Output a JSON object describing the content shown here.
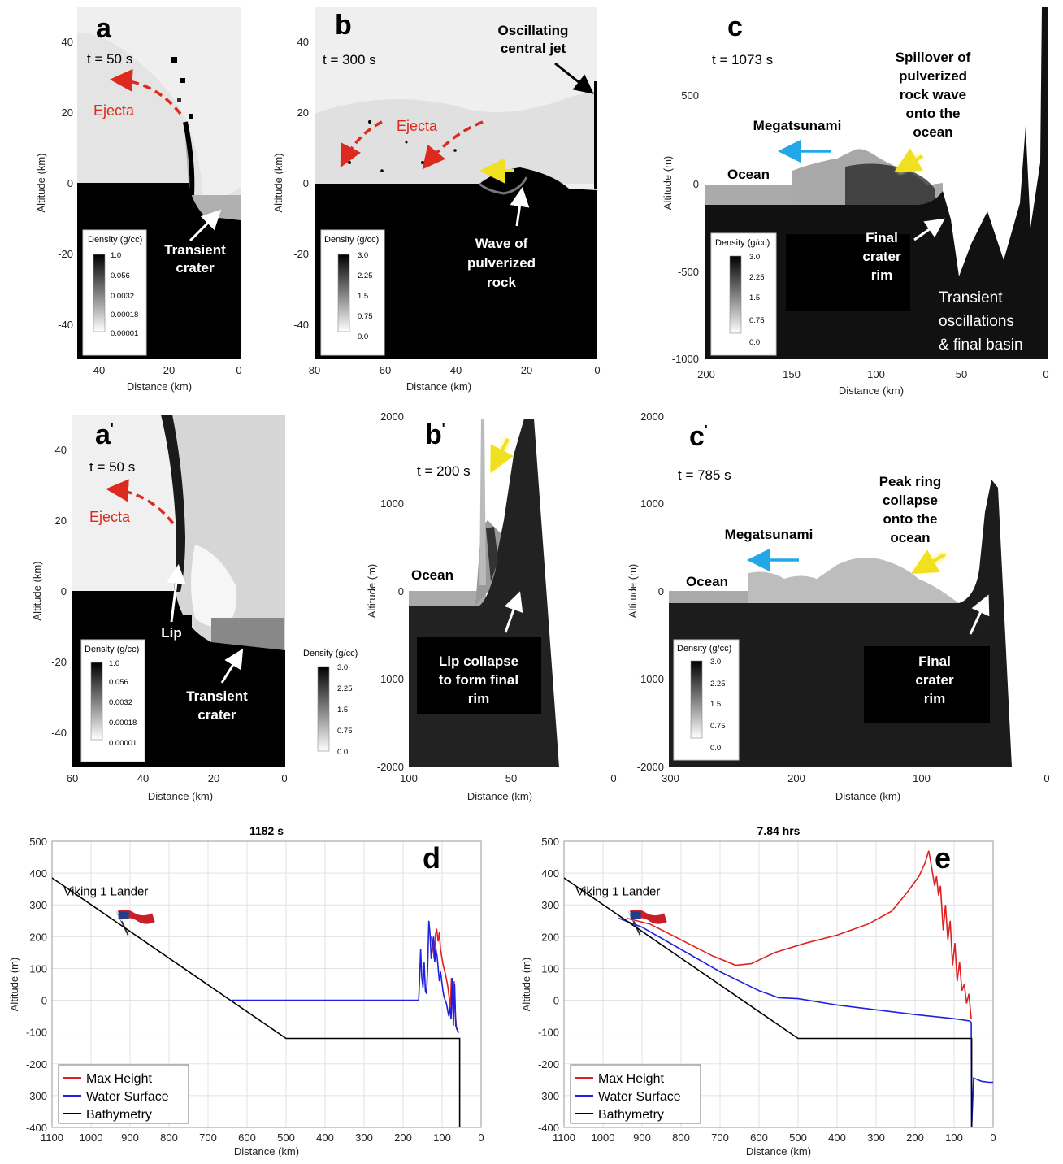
{
  "panels": {
    "a": {
      "letter": "a",
      "time": "t = 50 s",
      "ejecta": "Ejecta",
      "crater": [
        "Transient",
        "crater"
      ],
      "ylabel": "Altitude (km)",
      "xlabel": "Distance (km)",
      "yticks": [
        "40",
        "20",
        "0",
        "-20",
        "-40"
      ],
      "xticks": [
        "40",
        "20",
        "0"
      ],
      "cbar_title": "Density (g/cc)",
      "cbar_ticks": [
        "1.0",
        "0.056",
        "0.0032",
        "0.00018",
        "0.00001"
      ]
    },
    "b": {
      "letter": "b",
      "time": "t = 300 s",
      "ejecta": "Ejecta",
      "jet": [
        "Oscillating",
        "central jet"
      ],
      "wave": [
        "Wave of",
        "pulverized",
        "rock"
      ],
      "ylabel": "Altitude (km)",
      "xlabel": "Distance (km)",
      "yticks": [
        "40",
        "20",
        "0",
        "-20",
        "-40"
      ],
      "xticks": [
        "80",
        "60",
        "40",
        "20",
        "0"
      ],
      "cbar_title": "Density (g/cc)",
      "cbar_ticks": [
        "3.0",
        "2.25",
        "1.5",
        "0.75",
        "0.0"
      ]
    },
    "c": {
      "letter": "c",
      "time": "t = 1073 s",
      "megatsunami": "Megatsunami",
      "ocean": "Ocean",
      "spill": [
        "Spillover of",
        "pulverized",
        "rock wave",
        "onto the",
        "ocean"
      ],
      "rim": [
        "Final",
        "crater",
        "rim"
      ],
      "osc": [
        "Transient",
        "oscillations",
        "& final basin"
      ],
      "ylabel": "Altitude (m)",
      "xlabel": "Distance (km)",
      "yticks": [
        "500",
        "0",
        "-500",
        "-1000"
      ],
      "xticks": [
        "200",
        "150",
        "100",
        "50",
        "0"
      ],
      "cbar_title": "Density (g/cc)",
      "cbar_ticks": [
        "3.0",
        "2.25",
        "1.5",
        "0.75",
        "0.0"
      ]
    },
    "a2": {
      "letter": "a",
      "time": "t = 50 s",
      "ejecta": "Ejecta",
      "lip": "Lip",
      "crater": [
        "Transient",
        "crater"
      ],
      "ylabel": "Altitude (km)",
      "xlabel": "Distance (km)",
      "yticks": [
        "40",
        "20",
        "0",
        "-20",
        "-40"
      ],
      "xticks": [
        "60",
        "40",
        "20",
        "0"
      ],
      "cbar_title": "Density (g/cc)",
      "cbar_ticks": [
        "1.0",
        "0.056",
        "0.0032",
        "0.00018",
        "0.00001"
      ],
      "cbar2_title": "Density (g/cc)",
      "cbar2_ticks": [
        "3.0",
        "2.25",
        "1.5",
        "0.75",
        "0.0"
      ]
    },
    "b2": {
      "letter": "b",
      "time": "t = 200 s",
      "ocean": "Ocean",
      "lip": [
        "Lip collapse",
        "to form final",
        "rim"
      ],
      "ylabel": "Altitude (m)",
      "xlabel": "Distance (km)",
      "yticks": [
        "2000",
        "1000",
        "0",
        "-1000",
        "-2000"
      ],
      "xticks": [
        "100",
        "50",
        "0"
      ]
    },
    "c2": {
      "letter": "c",
      "time": "t = 785 s",
      "megatsunami": "Megatsunami",
      "ocean": "Ocean",
      "peak": [
        "Peak ring",
        "collapse",
        "onto the",
        "ocean"
      ],
      "rim": [
        "Final",
        "crater",
        "rim"
      ],
      "ylabel": "Altitude (m)",
      "xlabel": "Distance (km)",
      "yticks": [
        "2000",
        "1000",
        "0",
        "-1000",
        "-2000"
      ],
      "xticks": [
        "300",
        "200",
        "100",
        "0"
      ],
      "cbar_title": "Density (g/cc)",
      "cbar_ticks": [
        "3.0",
        "2.25",
        "1.5",
        "0.75",
        "0.0"
      ]
    }
  },
  "chart_data": [
    {
      "type": "line",
      "letter": "d",
      "title": "1182 s",
      "annotation": "Viking 1 Lander",
      "xlabel": "Distance (km)",
      "ylabel": "Altitude (m)",
      "xlim": [
        1100,
        0
      ],
      "ylim": [
        -400,
        500
      ],
      "xticks": [
        1100,
        1000,
        900,
        800,
        700,
        600,
        500,
        400,
        300,
        200,
        100,
        0
      ],
      "yticks": [
        500,
        400,
        300,
        200,
        100,
        0,
        -100,
        -200,
        -300,
        -400
      ],
      "grid": true,
      "legend_position": "bottom-left",
      "series": [
        {
          "name": "Max Height",
          "color": "#e02020",
          "x": [
            128,
            124,
            120,
            117,
            114,
            110,
            107,
            104,
            100,
            97,
            94,
            91,
            88,
            85,
            82,
            79,
            76,
            72,
            69,
            66,
            63,
            58
          ],
          "y": [
            200,
            170,
            130,
            205,
            225,
            185,
            215,
            160,
            130,
            110,
            95,
            80,
            60,
            40,
            10,
            -20,
            70,
            -40,
            60,
            -45,
            -90,
            -100
          ]
        },
        {
          "name": "Water Surface",
          "color": "#2020e0",
          "x": [
            640,
            160,
            158,
            155,
            152,
            149,
            146,
            143,
            140,
            137,
            134,
            131,
            128,
            125,
            122,
            119,
            116,
            113,
            110,
            107,
            104,
            101,
            98,
            95,
            92,
            89,
            86,
            83,
            80,
            77,
            74,
            71,
            68,
            65,
            62,
            59,
            56
          ],
          "y": [
            0,
            0,
            60,
            160,
            70,
            40,
            120,
            30,
            20,
            100,
            250,
            210,
            130,
            170,
            200,
            120,
            160,
            140,
            100,
            60,
            90,
            60,
            30,
            10,
            0,
            -10,
            -30,
            -50,
            -20,
            -60,
            70,
            -80,
            50,
            -80,
            -90,
            -100,
            -100
          ]
        },
        {
          "name": "Bathymetry",
          "color": "#000000",
          "x": [
            1100,
            500,
            55,
            55
          ],
          "y": [
            385,
            -120,
            -120,
            -400
          ]
        }
      ]
    },
    {
      "type": "line",
      "letter": "e",
      "title": "7.84 hrs",
      "annotation": "Viking 1 Lander",
      "xlabel": "Distance (km)",
      "ylabel": "Altitude (m)",
      "xlim": [
        1100,
        0
      ],
      "ylim": [
        -400,
        500
      ],
      "xticks": [
        1100,
        1000,
        900,
        800,
        700,
        600,
        500,
        400,
        300,
        200,
        100,
        0
      ],
      "yticks": [
        500,
        400,
        300,
        200,
        100,
        0,
        -100,
        -200,
        -300,
        -400
      ],
      "grid": true,
      "legend_position": "bottom-left",
      "series": [
        {
          "name": "Max Height",
          "color": "#e02020",
          "x": [
            940,
            880,
            800,
            720,
            660,
            620,
            560,
            480,
            400,
            320,
            260,
            220,
            190,
            175,
            165,
            158,
            150,
            145,
            140,
            135,
            128,
            122,
            116,
            110,
            104,
            98,
            92,
            86,
            80,
            74,
            68,
            62,
            56
          ],
          "y": [
            258,
            240,
            190,
            140,
            110,
            115,
            150,
            180,
            205,
            240,
            280,
            340,
            390,
            430,
            470,
            420,
            360,
            390,
            330,
            360,
            220,
            300,
            190,
            250,
            110,
            180,
            60,
            120,
            30,
            50,
            -10,
            20,
            -60
          ]
        },
        {
          "name": "Water Surface",
          "color": "#2020e0",
          "x": [
            960,
            900,
            800,
            700,
            600,
            550,
            500,
            400,
            300,
            200,
            100,
            60,
            56,
            55,
            50,
            40,
            30,
            10,
            0
          ],
          "y": [
            258,
            230,
            160,
            90,
            30,
            8,
            5,
            -15,
            -30,
            -45,
            -58,
            -65,
            -70,
            -400,
            -245,
            -250,
            -255,
            -258,
            -258
          ]
        },
        {
          "name": "Bathymetry",
          "color": "#000000",
          "x": [
            1100,
            500,
            55,
            55
          ],
          "y": [
            385,
            -120,
            -120,
            -400
          ]
        }
      ]
    }
  ]
}
